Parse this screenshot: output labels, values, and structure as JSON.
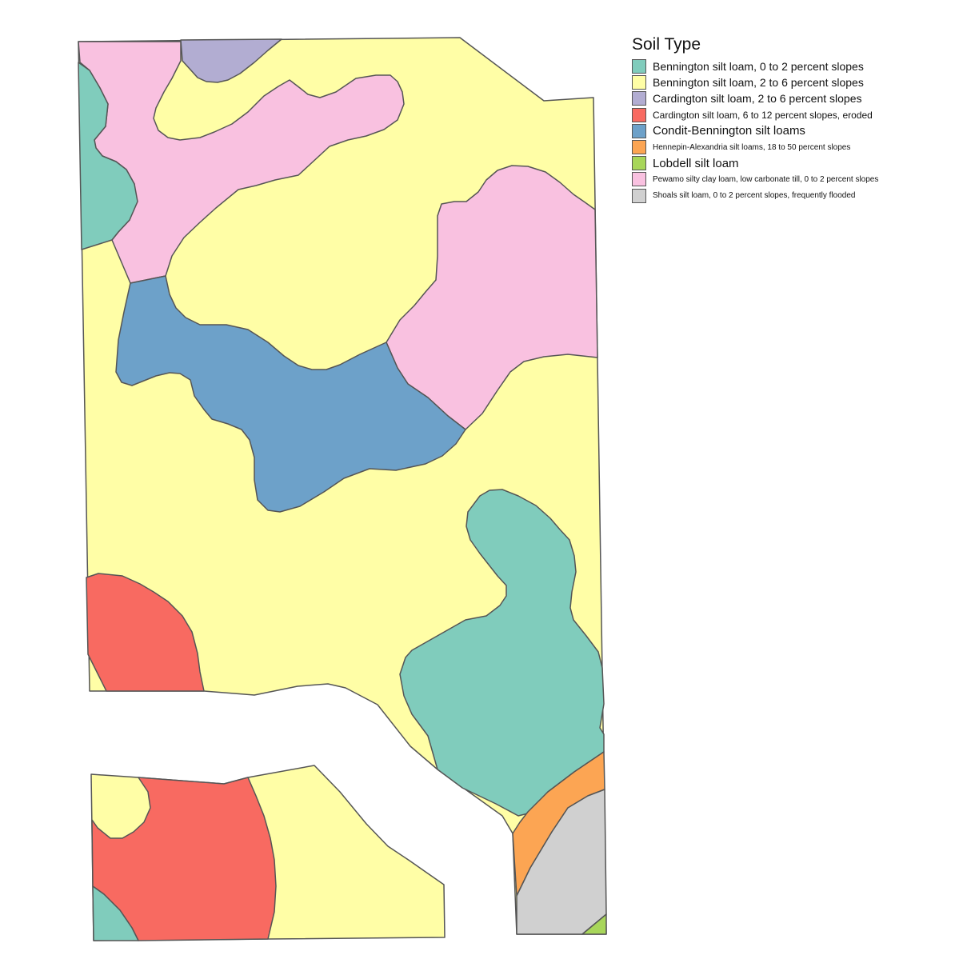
{
  "legend": {
    "title": "Soil Type",
    "items": [
      {
        "key": "ben02",
        "label": "Bennington silt loam, 0 to 2 percent slopes",
        "color": "#80CCBC"
      },
      {
        "key": "ben26",
        "label": "Bennington silt loam, 2 to 6 percent slopes",
        "color": "#FFFEA6"
      },
      {
        "key": "car26",
        "label": "Cardington silt loam, 2 to 6 percent slopes",
        "color": "#B2ADD2"
      },
      {
        "key": "car612",
        "label": "Cardington silt loam, 6 to 12 percent slopes, eroded",
        "color": "#F86A61"
      },
      {
        "key": "condit",
        "label": "Condit-Bennington silt loams",
        "color": "#6DA1C9"
      },
      {
        "key": "henn",
        "label": "Hennepin-Alexandria silt loams, 18 to 50 percent slopes",
        "color": "#FCA553"
      },
      {
        "key": "lobdell",
        "label": "Lobdell silt loam",
        "color": "#A8D65A"
      },
      {
        "key": "pewamo",
        "label": "Pewamo silty clay loam, low carbonate till, 0 to 2 percent slopes",
        "color": "#F9C1E0"
      },
      {
        "key": "shoals",
        "label": "Shoals silt loam, 0 to 2 percent slopes, frequently flooded",
        "color": "#D0D0D0"
      }
    ]
  }
}
